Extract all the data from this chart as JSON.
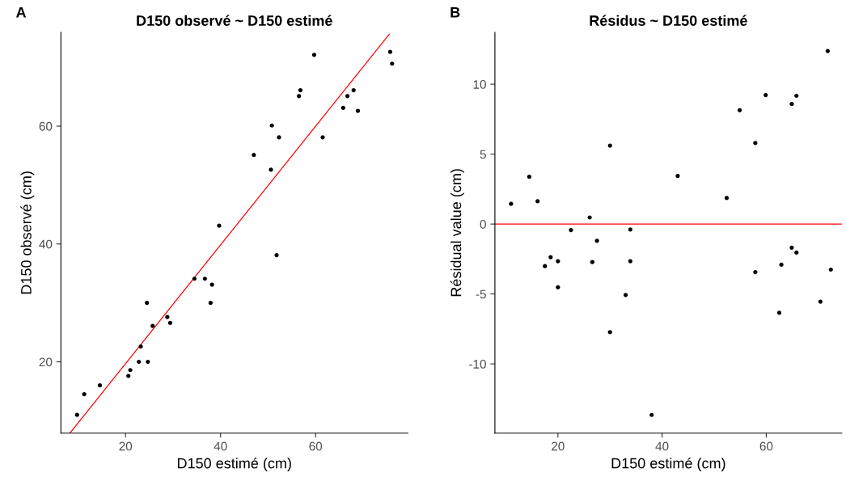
{
  "chart_data": [
    {
      "type": "scatter",
      "title": "D150 observé ~ D150 estimé",
      "xlabel": "D150 estimé (cm)",
      "ylabel": "D150 observé (cm)",
      "annotations": [
        "A"
      ],
      "xlim": [
        6.4,
        79.4
      ],
      "ylim": [
        7.9,
        75.9
      ],
      "xticks": [
        20,
        40,
        60
      ],
      "yticks": [
        20,
        40,
        60
      ],
      "grid": false,
      "legend": false,
      "series": [
        {
          "marker": "circle",
          "color": "#000000",
          "x": [
            9.8,
            11.3,
            14.6,
            20.6,
            21.0,
            22.8,
            24.7,
            23.2,
            24.5,
            25.7,
            28.8,
            29.4,
            34.5,
            36.7,
            38.2,
            37.9,
            39.7,
            51.8,
            47.0,
            50.6,
            50.8,
            52.3,
            56.5,
            56.8,
            59.7,
            61.5,
            65.8,
            66.7,
            68.0,
            68.9,
            75.7,
            76.1
          ],
          "values": [
            11.0,
            14.5,
            16.0,
            17.6,
            18.6,
            20.0,
            20.0,
            22.6,
            30.0,
            26.1,
            27.6,
            26.6,
            34.1,
            34.1,
            33.1,
            30.0,
            43.1,
            38.1,
            55.1,
            52.6,
            60.1,
            58.1,
            65.1,
            66.1,
            72.1,
            58.1,
            63.1,
            65.1,
            66.1,
            62.6,
            72.6,
            70.6
          ]
        },
        {
          "type": "line",
          "color": "#ff0000",
          "x": [
            8.3,
            75.5
          ],
          "values": [
            7.9,
            75.6
          ]
        }
      ]
    },
    {
      "type": "scatter",
      "title": "Résidus ~ D150 estimé",
      "xlabel": "D150 estimé (cm)",
      "ylabel": "Résidual value (cm)",
      "annotations": [
        "B"
      ],
      "xlim": [
        7.9,
        74.5
      ],
      "ylim": [
        -14.95,
        13.7
      ],
      "xticks": [
        20,
        40,
        60
      ],
      "yticks": [
        -10,
        -5,
        0,
        5,
        10
      ],
      "grid": false,
      "legend": false,
      "ref_lines": [
        {
          "axis": "y",
          "value": 0,
          "color": "#ff0000"
        }
      ],
      "series": [
        {
          "marker": "circle",
          "color": "#000000",
          "x": [
            11.0,
            14.5,
            16.1,
            17.5,
            18.6,
            20.0,
            20.0,
            22.5,
            26.1,
            26.6,
            27.5,
            30.0,
            30.0,
            33.0,
            33.9,
            33.9,
            38.0,
            43.0,
            52.4,
            54.9,
            57.9,
            57.9,
            59.9,
            62.5,
            62.9,
            64.9,
            64.9,
            65.8,
            65.8,
            70.4,
            71.8,
            72.4
          ],
          "values": [
            1.44,
            3.38,
            1.63,
            -3.01,
            -2.37,
            -2.66,
            -4.52,
            -0.43,
            0.47,
            -2.72,
            -1.2,
            5.61,
            -7.73,
            -5.07,
            -0.39,
            -2.66,
            -13.65,
            3.44,
            1.86,
            8.14,
            5.79,
            -3.44,
            9.22,
            -6.35,
            -2.91,
            8.58,
            -1.69,
            9.17,
            -2.04,
            -5.55,
            12.37,
            -3.26
          ]
        }
      ]
    }
  ]
}
